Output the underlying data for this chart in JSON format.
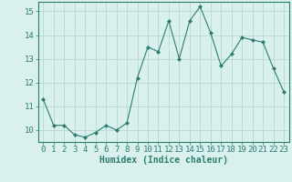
{
  "x": [
    0,
    1,
    2,
    3,
    4,
    5,
    6,
    7,
    8,
    9,
    10,
    11,
    12,
    13,
    14,
    15,
    16,
    17,
    18,
    19,
    20,
    21,
    22,
    23
  ],
  "y": [
    11.3,
    10.2,
    10.2,
    9.8,
    9.7,
    9.9,
    10.2,
    10.0,
    10.3,
    12.2,
    13.5,
    13.3,
    14.6,
    13.0,
    14.6,
    15.2,
    14.1,
    12.7,
    13.2,
    13.9,
    13.8,
    13.7,
    12.6,
    11.6
  ],
  "xlabel": "Humidex (Indice chaleur)",
  "ylim": [
    9.5,
    15.4
  ],
  "xlim": [
    -0.5,
    23.5
  ],
  "yticks": [
    10,
    11,
    12,
    13,
    14,
    15
  ],
  "xticks": [
    0,
    1,
    2,
    3,
    4,
    5,
    6,
    7,
    8,
    9,
    10,
    11,
    12,
    13,
    14,
    15,
    16,
    17,
    18,
    19,
    20,
    21,
    22,
    23
  ],
  "line_color": "#2d7d6e",
  "marker": "D",
  "marker_size": 2.0,
  "bg_color": "#d9f0ee",
  "grid_color": "#afd4ce",
  "axis_color": "#2d7d6e",
  "xlabel_fontsize": 7.0,
  "tick_fontsize": 6.5,
  "linewidth": 0.8
}
